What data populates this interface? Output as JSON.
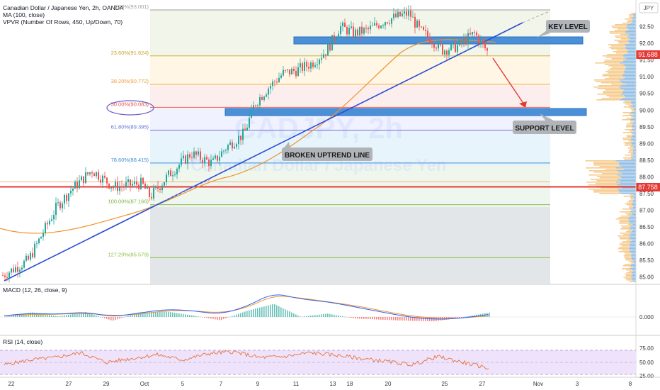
{
  "header": {
    "symbol_title": "Canadian Dollar / Japanese Yen, 2h, OANDA",
    "indicator_ma": "MA (100, close)",
    "indicator_vpvr": "VPVR (Number Of Rows, 450, Up/Down, 70)",
    "currency": "JPY"
  },
  "watermark": {
    "ticker": "CADJPY, 2h",
    "name": "Canadian Dollar / Japanese Yen"
  },
  "annotations": {
    "key_level": "KEY LEVEL",
    "support_level": "SUPPORT LEVEL",
    "broken_uptrend": "BROKEN UPTREND LINE"
  },
  "price_tags": {
    "current": "91.688",
    "red_level": "87.758"
  },
  "colors": {
    "bull": "#26a69a",
    "bear": "#ef5350",
    "trendline": "#2a4bd7",
    "ma": "#f0932b",
    "zone": "#4a90d9",
    "red_level": "#e53935"
  },
  "chart_data": [
    {
      "type": "candlestick",
      "title": "Canadian Dollar / Japanese Yen, 2h, OANDA",
      "ylim": [
        84.8,
        93.3
      ],
      "y_ticks": [
        "85.00",
        "85.50",
        "86.00",
        "86.50",
        "87.00",
        "87.50",
        "88.00",
        "88.50",
        "89.00",
        "89.50",
        "90.00",
        "90.50",
        "91.00",
        "91.50",
        "92.00",
        "92.50",
        "93.00"
      ],
      "x_ticks": [
        "22",
        "27",
        "29",
        "Oct",
        "5",
        "7",
        "9",
        "11",
        "13",
        "18",
        "20",
        "25",
        "27",
        "Nov",
        "3",
        "8"
      ],
      "approx_close_path": [
        {
          "t": "22",
          "close": 85.0
        },
        {
          "t": "27",
          "close": 87.6
        },
        {
          "t": "29",
          "close": 88.0
        },
        {
          "t": "Oct",
          "close": 87.6
        },
        {
          "t": "5",
          "close": 88.5
        },
        {
          "t": "7",
          "close": 88.5
        },
        {
          "t": "9",
          "close": 89.2
        },
        {
          "t": "11",
          "close": 90.8
        },
        {
          "t": "13",
          "close": 91.2
        },
        {
          "t": "18",
          "close": 92.4
        },
        {
          "t": "20",
          "close": 92.7
        },
        {
          "t": "25",
          "close": 91.9
        },
        {
          "t": "27",
          "close": 91.7
        }
      ],
      "fibonacci": [
        {
          "label": "0.00%(93.001)",
          "price": 93.001
        },
        {
          "label": "23.60%(91.624)",
          "price": 91.624
        },
        {
          "label": "38.20%(90.772)",
          "price": 90.772
        },
        {
          "label": "50.00%(90.083)",
          "price": 90.083
        },
        {
          "label": "61.80%(89.395)",
          "price": 89.395
        },
        {
          "label": "78.60%(88.415)",
          "price": 88.415
        },
        {
          "label": "100.00%(87.166)",
          "price": 87.166
        },
        {
          "label": "127.20%(85.579)",
          "price": 85.579
        }
      ],
      "zones": [
        {
          "name": "key level",
          "low": 92.08,
          "high": 92.22
        },
        {
          "name": "support level",
          "low": 89.98,
          "high": 90.15
        }
      ],
      "horizontal_lines": [
        {
          "name": "red level",
          "price": 87.758
        }
      ],
      "legend": [
        "MA (100, close)",
        "VPVR (Number Of Rows, 450, Up/Down, 70)"
      ]
    },
    {
      "type": "line",
      "title": "MACD (12, 26, close, 9)",
      "y_ticks": [
        "0.000"
      ],
      "series": [
        {
          "name": "MACD",
          "shape": [
            0.05,
            0.15,
            0.1,
            0.2,
            0.0,
            0.15,
            0.3,
            0.25,
            0.1,
            0.4,
            0.95,
            0.7,
            0.6,
            0.4,
            0.2,
            0.0,
            -0.1,
            -0.05,
            0.1
          ]
        },
        {
          "name": "Signal",
          "shape": [
            0.05,
            0.1,
            0.1,
            0.15,
            0.05,
            0.1,
            0.25,
            0.25,
            0.15,
            0.35,
            0.85,
            0.75,
            0.6,
            0.45,
            0.25,
            0.05,
            -0.05,
            -0.05,
            0.05
          ]
        }
      ]
    },
    {
      "type": "line",
      "title": "RSI (14, close)",
      "y_ticks": [
        "75.00",
        "50.00",
        "25.00"
      ],
      "ylim": [
        20,
        80
      ],
      "series": [
        {
          "name": "RSI",
          "values": [
            45,
            55,
            60,
            70,
            50,
            58,
            66,
            55,
            68,
            72,
            60,
            62,
            70,
            65,
            58,
            52,
            45,
            62,
            50,
            38
          ]
        }
      ]
    }
  ]
}
